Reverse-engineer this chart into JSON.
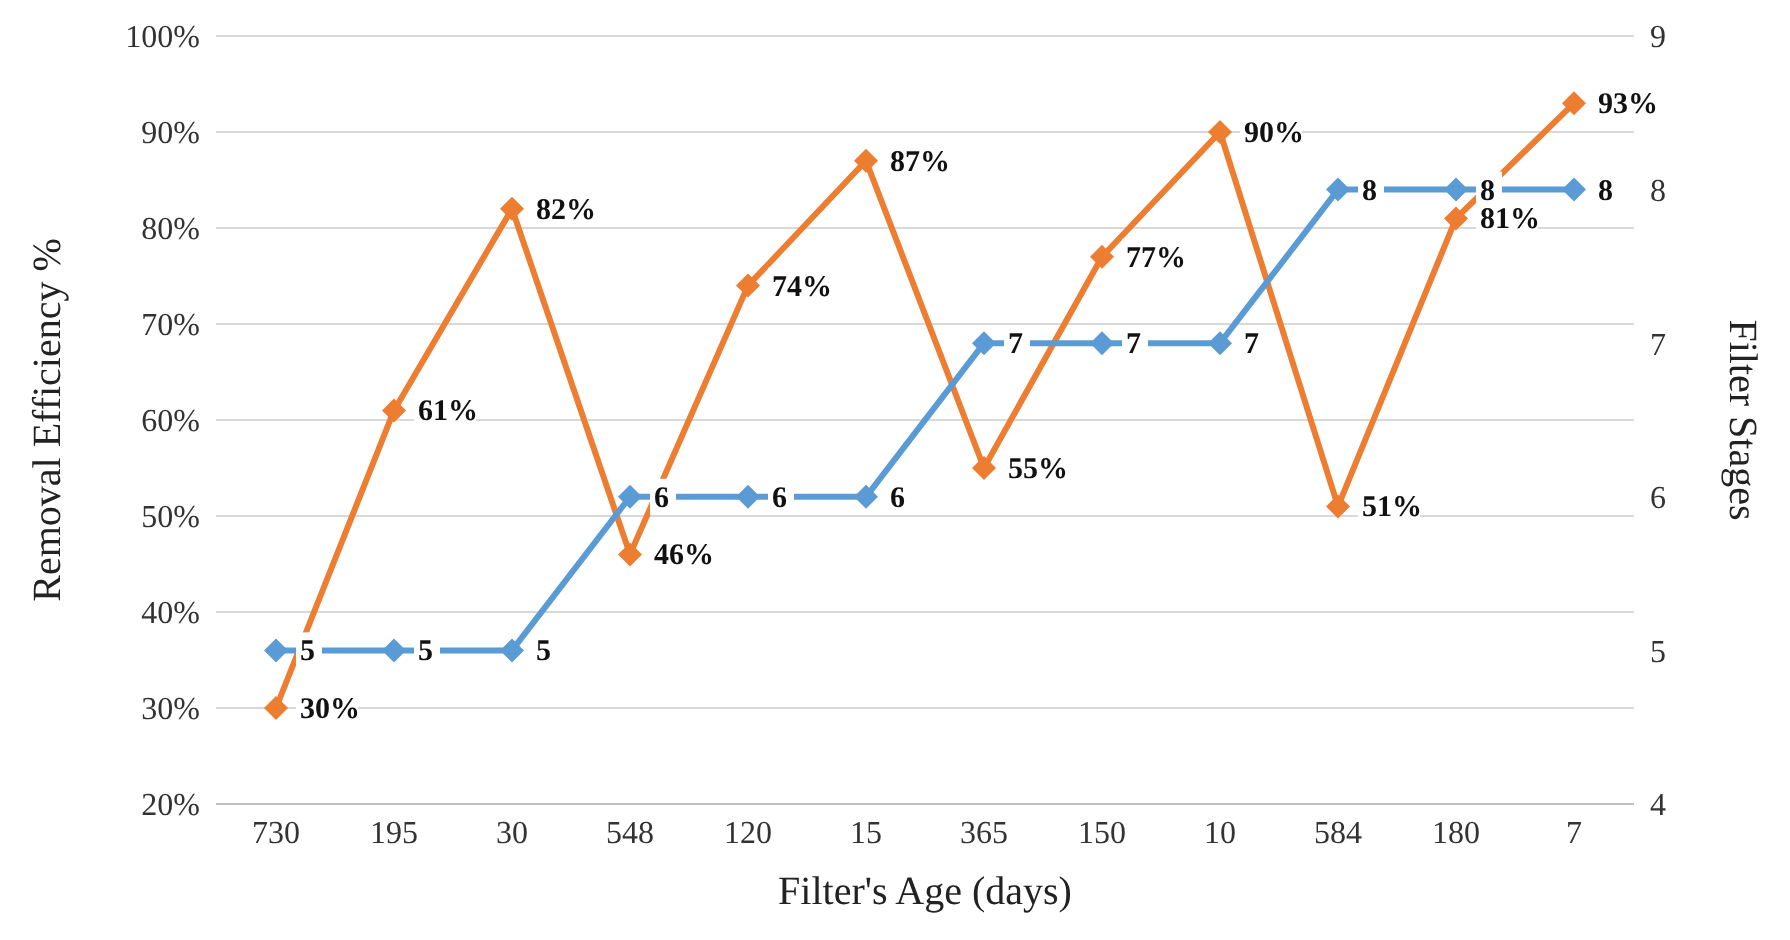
{
  "chart_data": {
    "type": "line",
    "xlabel": "Filter's Age (days)",
    "ylabel": "Removal Efficiency %",
    "y2label": "Filter Stages",
    "categories": [
      "730",
      "195",
      "30",
      "548",
      "120",
      "15",
      "365",
      "150",
      "10",
      "584",
      "180",
      "7"
    ],
    "series": [
      {
        "color": "#ed7d31",
        "values": [
          30,
          61,
          82,
          46,
          74,
          87,
          55,
          77,
          90,
          51,
          81,
          93
        ],
        "value_labels": [
          "30%",
          "61%",
          "82%",
          "46%",
          "74%",
          "87%",
          "55%",
          "77%",
          "90%",
          "51%",
          "81%",
          "93%"
        ]
      },
      {
        "color": "#5b9bd5",
        "axis": "y2",
        "values": [
          5,
          5,
          5,
          6,
          6,
          6,
          7,
          7,
          7,
          8,
          8,
          8
        ],
        "value_labels": [
          "5",
          "5",
          "5",
          "6",
          "6",
          "6",
          "7",
          "7",
          "7",
          "8",
          "8",
          "8"
        ]
      }
    ],
    "ylim": [
      20,
      100
    ],
    "yticks": [
      {
        "value": 20,
        "label": "20%"
      },
      {
        "value": 30,
        "label": "30%"
      },
      {
        "value": 40,
        "label": "40%"
      },
      {
        "value": 50,
        "label": "50%"
      },
      {
        "value": 60,
        "label": "60%"
      },
      {
        "value": 70,
        "label": "70%"
      },
      {
        "value": 80,
        "label": "80%"
      },
      {
        "value": 90,
        "label": "90%"
      },
      {
        "value": 100,
        "label": "100%"
      }
    ],
    "y2lim": [
      4,
      9
    ],
    "y2ticks": [
      4,
      5,
      6,
      7,
      8,
      9
    ],
    "grid": "y",
    "legend": false,
    "marker": "diamond",
    "line_style": "solid"
  }
}
